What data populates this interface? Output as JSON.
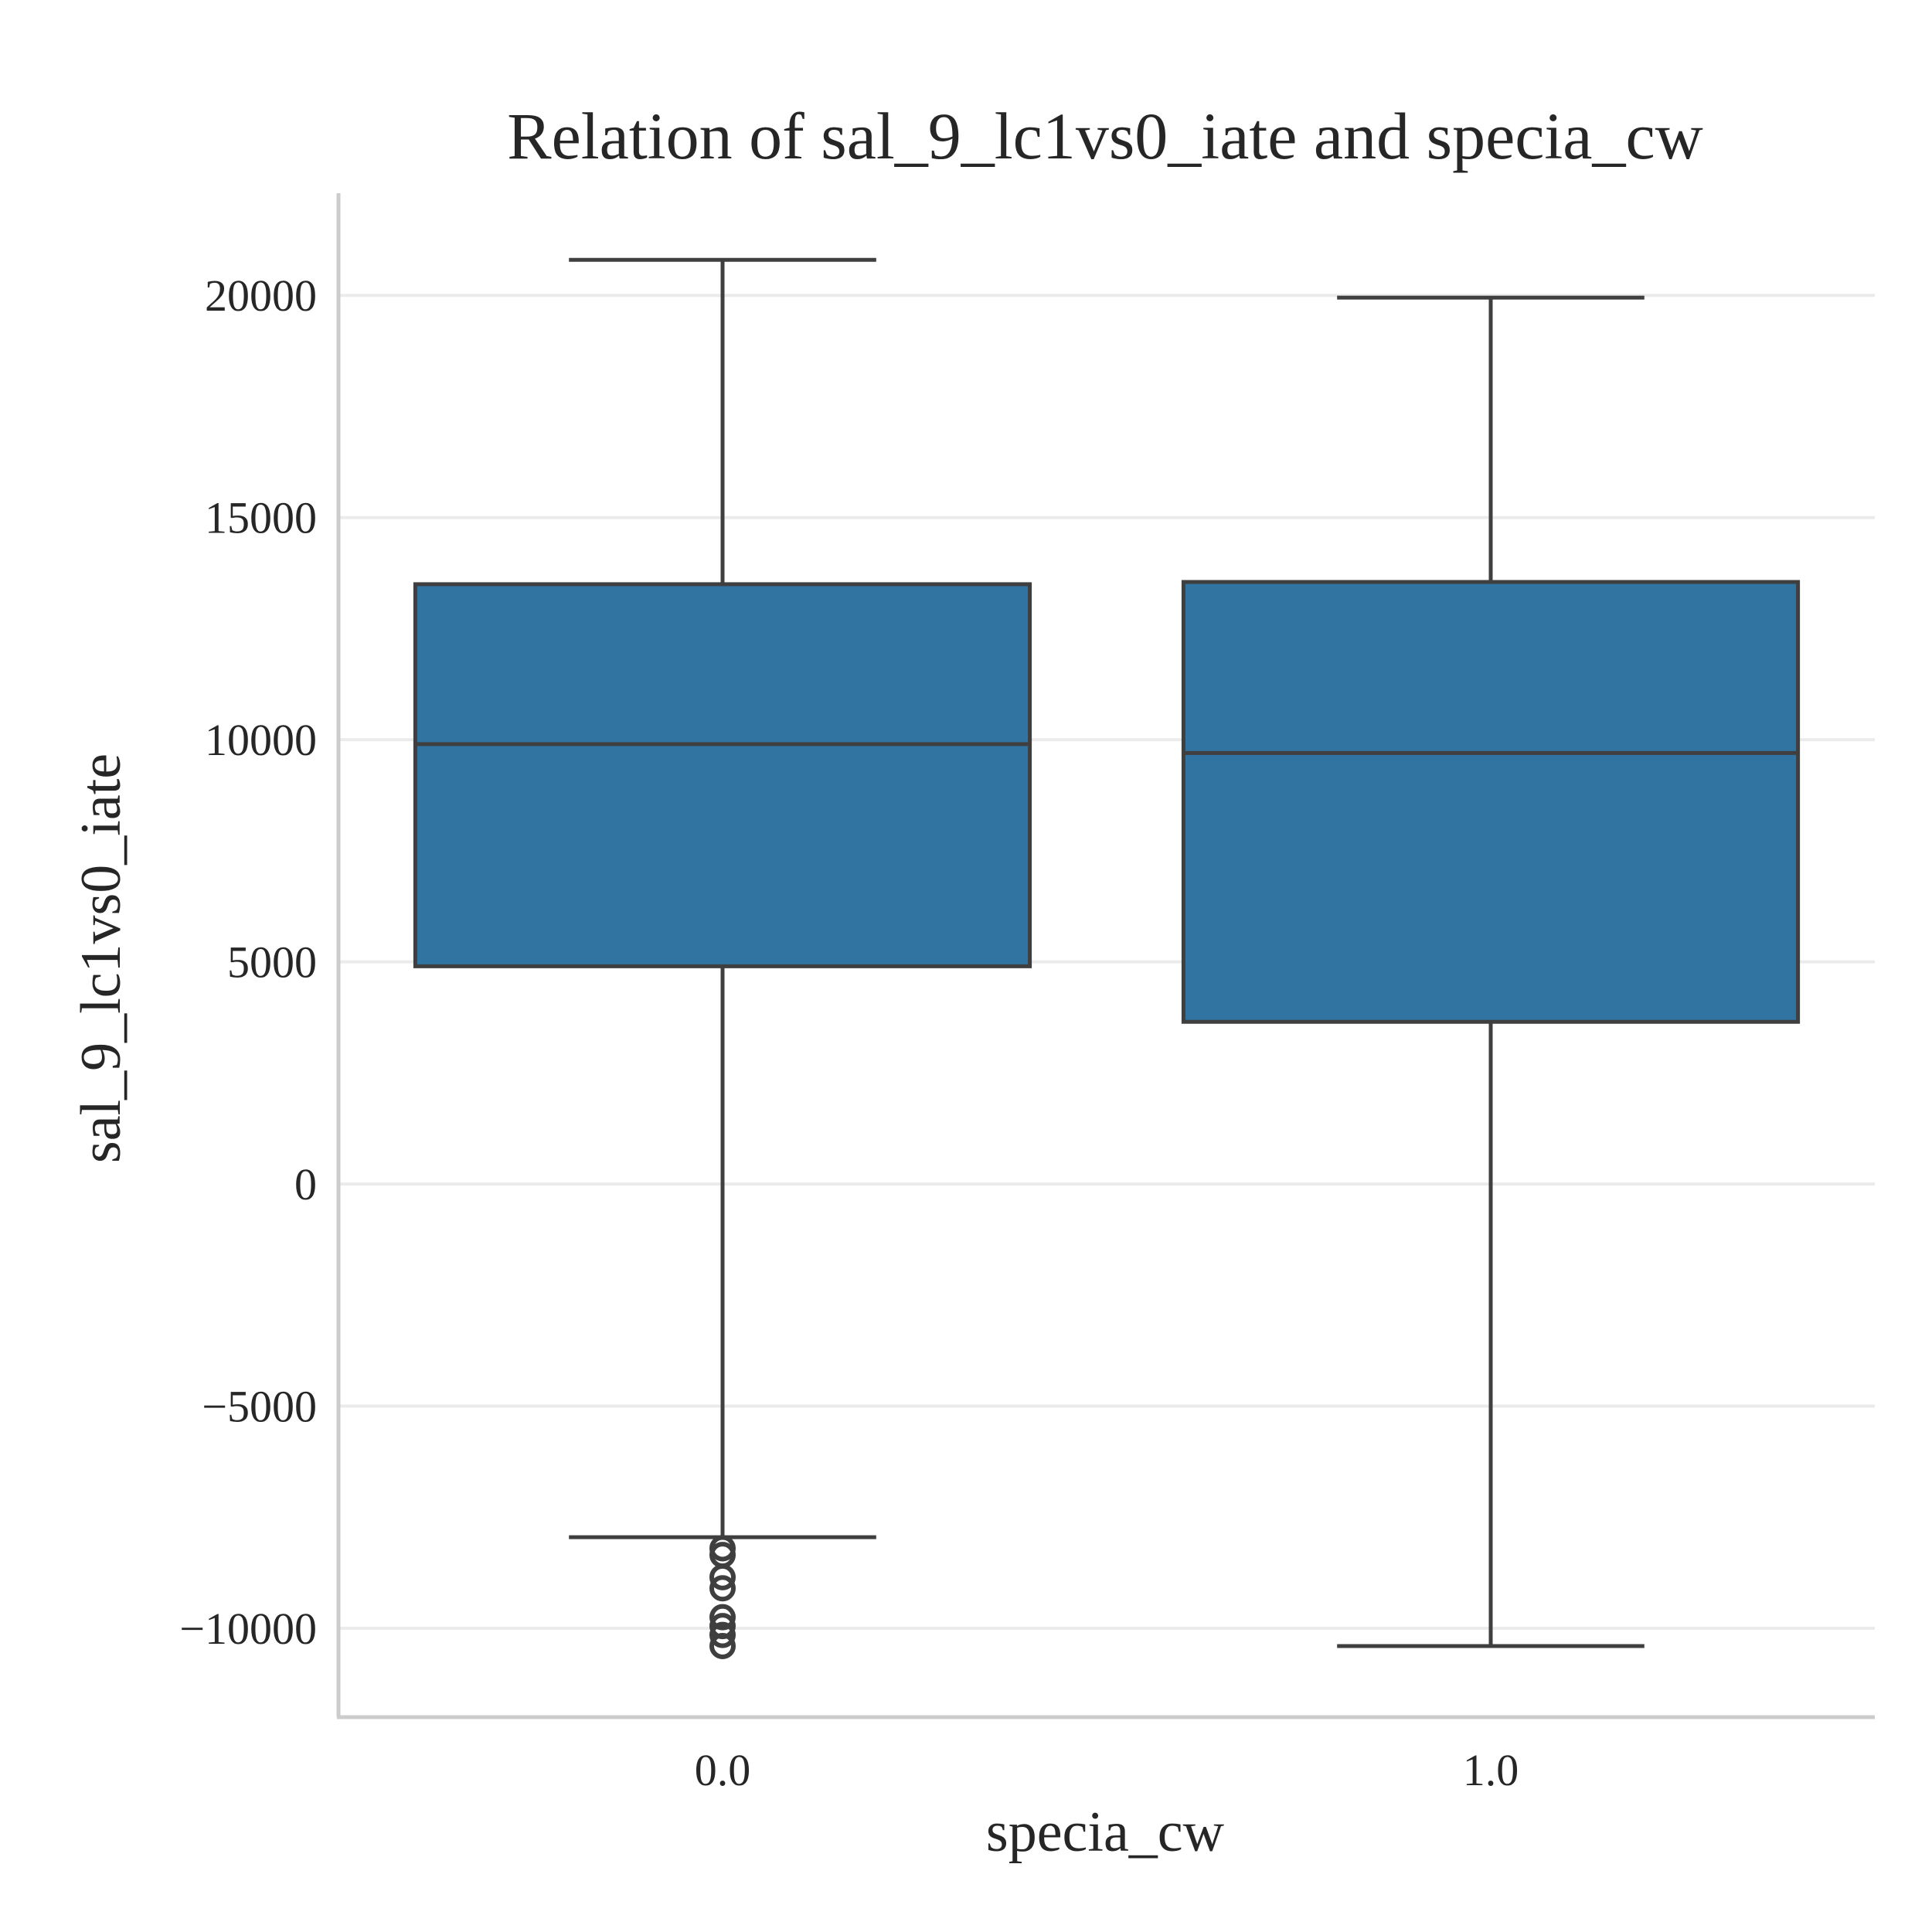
{
  "chart_data": {
    "type": "box",
    "title": "Relation of sal_9_lc1vs0_iate and specia_cw",
    "xlabel": "specia_cw",
    "ylabel": "sal_9_lc1vs0_iate",
    "ylim": [
      -12000,
      22300
    ],
    "yticks": [
      20000,
      15000,
      10000,
      5000,
      0,
      -5000,
      -10000
    ],
    "ytick_labels": [
      "20000",
      "15000",
      "10000",
      "5000",
      "0",
      "−5000",
      "−10000"
    ],
    "grid": true,
    "box_color": "#3274a1",
    "line_color": "#3f3f3f",
    "categories": [
      "0.0",
      "1.0"
    ],
    "boxes": [
      {
        "category": "0.0",
        "whisker_low": -7950,
        "q1": 4900,
        "median": 9900,
        "q3": 13500,
        "whisker_high": 20800,
        "outliers": [
          -8200,
          -8350,
          -8850,
          -9100,
          -9750,
          -9950,
          -10150,
          -10400
        ]
      },
      {
        "category": "1.0",
        "whisker_low": -10400,
        "q1": 3650,
        "median": 9700,
        "q3": 13550,
        "whisker_high": 19950,
        "outliers": []
      }
    ]
  }
}
